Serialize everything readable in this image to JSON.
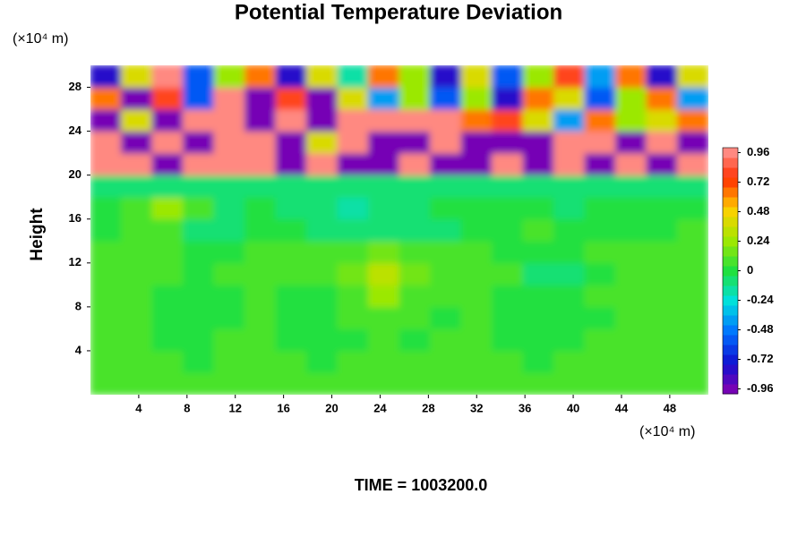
{
  "chart_data": {
    "type": "heatmap",
    "title": "Potential Temperature Deviation",
    "x_unit": "(×10⁴ m)",
    "y_unit": "(×10⁴ m)",
    "ylabel": "Height",
    "footer": "TIME = 1003200.0",
    "xlim": [
      0,
      51.2
    ],
    "ylim": [
      0,
      30
    ],
    "xticks": [
      4,
      8,
      12,
      16,
      20,
      24,
      28,
      32,
      36,
      40,
      44,
      48
    ],
    "yticks": [
      4,
      8,
      12,
      16,
      20,
      24,
      28
    ],
    "clim": [
      -1,
      1
    ],
    "cticks": [
      -0.96,
      -0.72,
      -0.48,
      -0.24,
      0,
      0.24,
      0.48,
      0.72,
      0.96
    ],
    "colormap": [
      "#8a00b0",
      "#1010d0",
      "#0070ff",
      "#00e0e0",
      "#20e040",
      "#a0e800",
      "#ffd000",
      "#ff3000",
      "#ff9a9a"
    ],
    "x": [
      1.28,
      3.84,
      6.4,
      8.96,
      11.52,
      14.08,
      16.64,
      19.2,
      21.76,
      24.32,
      26.88,
      29.44,
      32,
      34.56,
      37.12,
      39.68,
      42.24,
      44.8,
      47.36,
      49.92
    ],
    "y": [
      1,
      3,
      5,
      7,
      9,
      11,
      13,
      15,
      17,
      19,
      21,
      23,
      25,
      27,
      29
    ],
    "z": [
      [
        0.08,
        0.1,
        0.1,
        0.06,
        0.08,
        0.1,
        0.08,
        0.06,
        0.04,
        0.06,
        0.08,
        0.1,
        0.08,
        0.06,
        0.04,
        0.06,
        0.08,
        0.1,
        0.08,
        0.1
      ],
      [
        0.06,
        0.08,
        0.04,
        0.02,
        0.06,
        0.08,
        0.04,
        0.02,
        0.04,
        0.06,
        0.04,
        0.06,
        0.08,
        0.04,
        0.02,
        0.04,
        0.06,
        0.08,
        0.06,
        0.08
      ],
      [
        0.04,
        0.06,
        0.02,
        0,
        0.04,
        0.06,
        0.02,
        0,
        0.02,
        0.04,
        0.02,
        0.04,
        0.06,
        0.02,
        0,
        0.02,
        0.04,
        0.06,
        0.04,
        0.06
      ],
      [
        0.06,
        0.04,
        0,
        -0.04,
        0.02,
        0.04,
        0,
        -0.02,
        0.04,
        0.08,
        0.04,
        0.02,
        0.04,
        0,
        -0.02,
        0,
        0.02,
        0.04,
        0.06,
        0.08
      ],
      [
        0.06,
        0.04,
        0.02,
        0,
        0.02,
        0.04,
        0.02,
        0,
        0.06,
        0.24,
        0.08,
        0.04,
        0.04,
        0.02,
        0,
        0.02,
        0.04,
        0.06,
        0.04,
        0.06
      ],
      [
        0.08,
        0.06,
        0.04,
        0.02,
        0.04,
        0.06,
        0.08,
        0.1,
        0.16,
        0.3,
        0.16,
        0.1,
        0.06,
        0.04,
        -0.06,
        -0.1,
        0.02,
        0.04,
        0.06,
        0.08
      ],
      [
        0.06,
        0.08,
        0.06,
        -0.04,
        0.02,
        0.04,
        0.06,
        0.08,
        0.1,
        0.16,
        0.1,
        0.06,
        0.04,
        0.02,
        0,
        0.02,
        0.04,
        0.06,
        0.08,
        0.06
      ],
      [
        0.02,
        0.04,
        0.08,
        -0.1,
        -0.06,
        -0.04,
        0,
        -0.08,
        -0.12,
        -0.08,
        -0.1,
        -0.06,
        0,
        0.02,
        0.04,
        0.02,
        -0.02,
        0,
        0.02,
        0.04
      ],
      [
        0,
        0.04,
        0.24,
        0.04,
        -0.08,
        -0.04,
        -0.06,
        -0.12,
        -0.14,
        -0.1,
        -0.08,
        -0.04,
        -0.02,
        0,
        -0.04,
        -0.06,
        -0.02,
        0,
        0.02,
        0
      ],
      [
        -0.1,
        -0.08,
        -0.12,
        -0.1,
        -0.08,
        -0.06,
        -0.1,
        -0.08,
        -0.12,
        -0.1,
        -0.08,
        -0.1,
        -0.06,
        -0.08,
        -0.1,
        -0.08,
        -0.06,
        -0.08,
        -0.1,
        -0.08
      ],
      [
        1,
        1,
        -1,
        1,
        0.96,
        1,
        -1,
        1,
        -1,
        -1,
        1,
        -1,
        -1,
        1,
        -1,
        1,
        -1,
        1,
        -1,
        1
      ],
      [
        1,
        -1,
        1,
        -1,
        1,
        1,
        -1,
        0.4,
        1,
        -1,
        -1,
        1,
        -1,
        -1,
        -1,
        1,
        1,
        -1,
        1,
        -1
      ],
      [
        -1,
        0.4,
        -1,
        1,
        1,
        -1,
        1,
        -1,
        1,
        1,
        1,
        1,
        0.6,
        0.8,
        0.4,
        -0.4,
        0.6,
        0.2,
        0.4,
        0.6
      ],
      [
        0.6,
        -1,
        0.8,
        -0.6,
        1,
        -1,
        0.8,
        -1,
        0.4,
        -0.4,
        0.2,
        -0.6,
        0.2,
        -0.8,
        0.6,
        0.4,
        -0.6,
        0.2,
        0.6,
        -0.4
      ],
      [
        -0.8,
        0.4,
        1,
        -0.6,
        0.2,
        0.6,
        -0.8,
        0.4,
        -0.2,
        0.6,
        0.2,
        -0.8,
        0.4,
        -0.6,
        0.2,
        0.8,
        -0.4,
        0.6,
        -0.8,
        0.4
      ]
    ]
  }
}
